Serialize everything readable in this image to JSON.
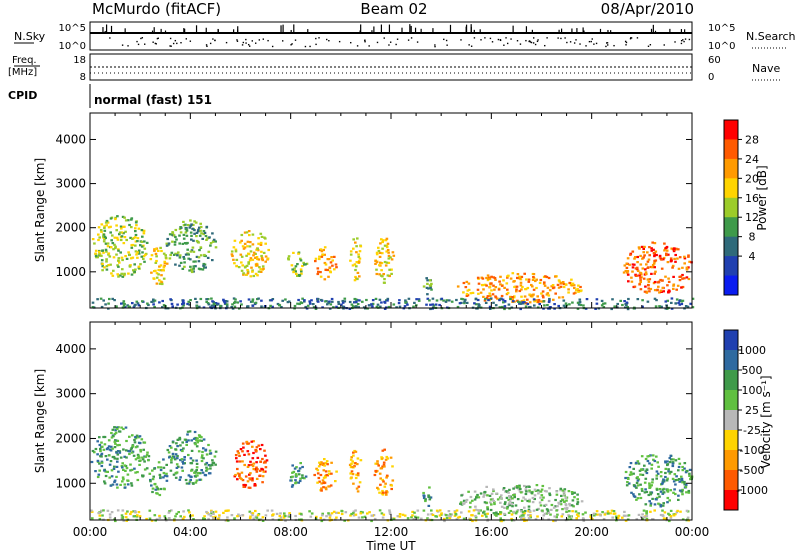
{
  "header": {
    "station": "McMurdo (fitACF)",
    "beam": "Beam 02",
    "date": "08/Apr/2010",
    "mode": "normal (fast) 151"
  },
  "top_panels": {
    "nsky_label": "N.Sky",
    "nsky_ticks": [
      "10^5",
      "10^0"
    ],
    "nsearch_label": "N.Search",
    "nsearch_ticks": [
      "10^5",
      "10^0"
    ],
    "freq_label_1": "Freq.",
    "freq_label_2": "[MHz]",
    "freq_ticks": [
      "18",
      "8"
    ],
    "nave_label": "Nave",
    "nave_ticks": [
      "60",
      "0"
    ],
    "cpid_label": "CPID"
  },
  "power_colorbar": {
    "title": "Power [dB]",
    "ticks": [
      "28",
      "24",
      "20",
      "16",
      "12",
      "8",
      "4"
    ],
    "colors": [
      "#ff0000",
      "#ff5a00",
      "#ff9a00",
      "#ffd400",
      "#9ccc2a",
      "#3f9a4a",
      "#2f6a7a",
      "#2040b0",
      "#0a1cf0"
    ]
  },
  "velocity_colorbar": {
    "title": "Velocity [m s⁻¹]",
    "ticks": [
      "1000",
      "500",
      "100",
      "25",
      "-25",
      "-100",
      "-500",
      "-1000"
    ],
    "colors": [
      "#2040b0",
      "#2f6aa0",
      "#3f9a4a",
      "#60c040",
      "#b8b8b8",
      "#ffd400",
      "#ff9a00",
      "#ff5a00",
      "#ff0000"
    ]
  },
  "chart_data": [
    {
      "type": "heatmap",
      "panel": "power",
      "ylabel": "Slant Range [km]",
      "ylim": [
        180,
        4600
      ],
      "yticks": [
        "1000",
        "2000",
        "3000",
        "4000"
      ],
      "xlim": [
        0,
        24
      ],
      "xticks": [
        "00:00",
        "04:00",
        "08:00",
        "12:00",
        "16:00",
        "20:00",
        "00:00"
      ],
      "echo_regions": [
        {
          "t0": 0.0,
          "t1": 2.3,
          "r0": 900,
          "r1": 2300,
          "level": 4
        },
        {
          "t0": 2.3,
          "t1": 3.1,
          "r0": 700,
          "r1": 1600,
          "level": 5
        },
        {
          "t0": 3.0,
          "t1": 5.0,
          "r0": 1000,
          "r1": 2200,
          "level": 3
        },
        {
          "t0": 5.6,
          "t1": 7.1,
          "r0": 900,
          "r1": 2000,
          "level": 5
        },
        {
          "t0": 7.8,
          "t1": 8.6,
          "r0": 900,
          "r1": 1500,
          "level": 4
        },
        {
          "t0": 8.9,
          "t1": 9.8,
          "r0": 800,
          "r1": 1600,
          "level": 6
        },
        {
          "t0": 10.3,
          "t1": 10.8,
          "r0": 800,
          "r1": 1800,
          "level": 5
        },
        {
          "t0": 11.3,
          "t1": 12.1,
          "r0": 700,
          "r1": 1800,
          "level": 5
        },
        {
          "t0": 13.2,
          "t1": 13.6,
          "r0": 500,
          "r1": 1000,
          "level": 3
        },
        {
          "t0": 14.6,
          "t1": 19.6,
          "r0": 300,
          "r1": 1000,
          "level": 6
        },
        {
          "t0": 21.2,
          "t1": 24.0,
          "r0": 500,
          "r1": 1700,
          "level": 7
        },
        {
          "t0": 0.0,
          "t1": 24.0,
          "r0": 180,
          "r1": 420,
          "level": 2
        }
      ]
    },
    {
      "type": "heatmap",
      "panel": "velocity",
      "ylabel": "Slant Range [km]",
      "xlabel": "Time UT",
      "ylim": [
        180,
        4600
      ],
      "yticks": [
        "1000",
        "2000",
        "3000",
        "4000"
      ],
      "xlim": [
        0,
        24
      ],
      "xticks": [
        "00:00",
        "04:00",
        "08:00",
        "12:00",
        "16:00",
        "20:00",
        "00:00"
      ],
      "echo_regions": [
        {
          "t0": 0.0,
          "t1": 2.3,
          "r0": 900,
          "r1": 2300,
          "level": 6
        },
        {
          "t0": 2.3,
          "t1": 3.1,
          "r0": 700,
          "r1": 1600,
          "level": 6
        },
        {
          "t0": 3.0,
          "t1": 5.0,
          "r0": 1000,
          "r1": 2200,
          "level": 6
        },
        {
          "t0": 5.6,
          "t1": 7.1,
          "r0": 900,
          "r1": 2000,
          "level": 1
        },
        {
          "t0": 7.8,
          "t1": 8.6,
          "r0": 900,
          "r1": 1500,
          "level": 6
        },
        {
          "t0": 8.9,
          "t1": 9.8,
          "r0": 800,
          "r1": 1600,
          "level": 2
        },
        {
          "t0": 10.3,
          "t1": 10.8,
          "r0": 800,
          "r1": 1800,
          "level": 2
        },
        {
          "t0": 11.3,
          "t1": 12.1,
          "r0": 700,
          "r1": 1800,
          "level": 2
        },
        {
          "t0": 13.2,
          "t1": 13.6,
          "r0": 500,
          "r1": 1000,
          "level": 6
        },
        {
          "t0": 14.6,
          "t1": 19.6,
          "r0": 300,
          "r1": 1000,
          "level": 5
        },
        {
          "t0": 21.2,
          "t1": 24.0,
          "r0": 500,
          "r1": 1700,
          "level": 6
        },
        {
          "t0": 0.0,
          "t1": 24.0,
          "r0": 180,
          "r1": 420,
          "level": 4
        }
      ]
    }
  ]
}
